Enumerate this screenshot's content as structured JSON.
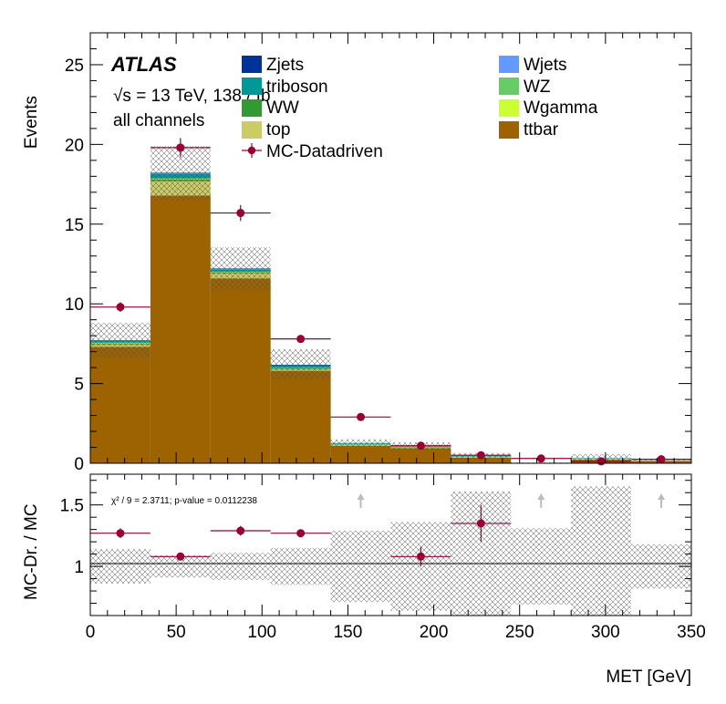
{
  "chart_data": {
    "type": "bar",
    "stacked": true,
    "experiment": "ATLAS",
    "energy_label": "√s = 13 TeV, 138 / fb",
    "channel_label": "all channels",
    "xlabel": "MET [GeV]",
    "ylabel_main": "Events",
    "ylabel_ratio": "MC-Dr. / MC",
    "xlim": [
      0,
      350
    ],
    "ylim_main": [
      0,
      27
    ],
    "ylim_ratio": [
      0.6,
      1.75
    ],
    "x_ticks": [
      0,
      50,
      100,
      150,
      200,
      250,
      300,
      350
    ],
    "y_ticks_main": [
      0,
      5,
      10,
      15,
      20,
      25
    ],
    "y_ticks_ratio": [
      1,
      1.5
    ],
    "bin_edges": [
      0,
      35,
      70,
      105,
      140,
      175,
      210,
      245,
      280,
      315,
      350
    ],
    "legend": {
      "left": [
        "Zjets",
        "triboson",
        "WW",
        "top",
        "MC-Datadriven"
      ],
      "right": [
        "Wjets",
        "WZ",
        "Wgamma",
        "ttbar"
      ]
    },
    "colors": {
      "ttbar": "#9c6300",
      "top": "#cccc66",
      "WW": "#339933",
      "triboson": "#009999",
      "Zjets": "#003399",
      "Wjets": "#6699ff",
      "WZ": "#66cc66",
      "Wgamma": "#ccff33",
      "data": "#990033",
      "arrow": "#bbbbbb"
    },
    "series": [
      {
        "name": "ttbar",
        "values": [
          7.3,
          16.8,
          11.6,
          5.8,
          1.1,
          0.95,
          0.35,
          0.0,
          0.22,
          0.12
        ]
      },
      {
        "name": "top",
        "values": [
          0.15,
          0.9,
          0.3,
          0.1,
          0.08,
          0.05,
          0.05,
          0.0,
          0.05,
          0.02
        ]
      },
      {
        "name": "WW",
        "values": [
          0.05,
          0.1,
          0.05,
          0.05,
          0.02,
          0.02,
          0.0,
          0.0,
          0.0,
          0.0
        ]
      },
      {
        "name": "Wgamma",
        "values": [
          0.02,
          0.02,
          0.02,
          0.0,
          0.0,
          0.0,
          0.0,
          0.0,
          0.0,
          0.0
        ]
      },
      {
        "name": "WZ",
        "values": [
          0.05,
          0.05,
          0.05,
          0.05,
          0.02,
          0.02,
          0.02,
          0.0,
          0.02,
          0.02
        ]
      },
      {
        "name": "triboson",
        "values": [
          0.1,
          0.3,
          0.15,
          0.15,
          0.05,
          0.03,
          0.03,
          0.0,
          0.03,
          0.02
        ]
      },
      {
        "name": "Wjets",
        "values": [
          0.02,
          0.02,
          0.02,
          0.0,
          0.0,
          0.0,
          0.0,
          0.0,
          0.0,
          0.0
        ]
      },
      {
        "name": "Zjets",
        "values": [
          0.03,
          0.03,
          0.03,
          0.03,
          0.0,
          0.0,
          0.0,
          0.0,
          0.0,
          0.0
        ]
      }
    ],
    "mc_total": [
      7.7,
      18.2,
      12.2,
      6.2,
      1.28,
      1.07,
      0.45,
      0.0,
      0.32,
      0.18
    ],
    "mc_uncertainty": [
      1.1,
      1.7,
      1.35,
      0.95,
      0.22,
      0.25,
      0.2,
      0.05,
      0.25,
      0.1
    ],
    "data_points": [
      9.8,
      19.8,
      15.7,
      7.8,
      2.9,
      1.1,
      0.5,
      0.3,
      0.12,
      0.25
    ],
    "data_yerr": [
      0.3,
      0.6,
      0.5,
      0.2,
      0.1,
      0.1,
      0.1,
      0.03,
      0.03,
      0.03
    ],
    "ratio_values": [
      1.27,
      1.08,
      1.29,
      1.27,
      null,
      1.08,
      1.35,
      null,
      null,
      null
    ],
    "ratio_yerr": [
      0.04,
      0.03,
      0.04,
      0.03,
      0,
      0.08,
      0.15,
      0,
      0,
      0
    ],
    "ratio_uncertainty": [
      0.14,
      0.09,
      0.11,
      0.15,
      0.29,
      0.36,
      0.61,
      0.31,
      0.65,
      0.18
    ],
    "ratio_arrows_bins": [
      4,
      7,
      9
    ],
    "stats_text": "χ² / 9 = 2.3711; p-value = 0.0112238"
  }
}
